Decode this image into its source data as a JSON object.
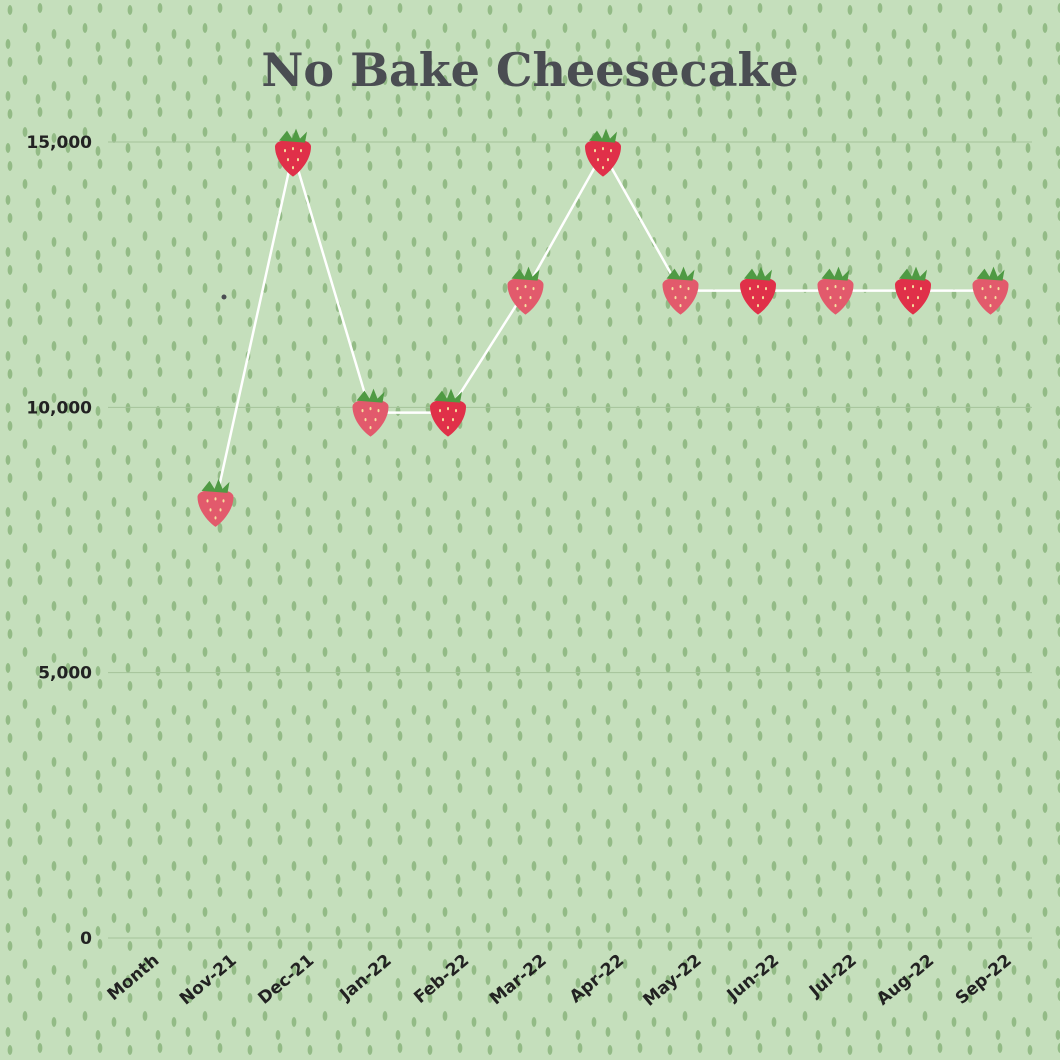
{
  "chart_data": {
    "type": "line",
    "title": "No Bake Cheesecake",
    "xlabel": "",
    "ylabel": "",
    "categories": [
      "Month",
      "Nov-21",
      "Dec-21",
      "Jan-22",
      "Feb-22",
      "Mar-22",
      "Apr-22",
      "May-22",
      "Jun-22",
      "Jul-22",
      "Aug-22",
      "Sep-22"
    ],
    "series": [
      {
        "values": [
          null,
          8200,
          14800,
          9900,
          9900,
          12200,
          14800,
          12200,
          12200,
          12200,
          12200,
          12200
        ]
      }
    ],
    "ylim": [
      0,
      15000
    ],
    "yticks": [
      0,
      5000,
      10000,
      15000
    ],
    "ytick_labels": [
      "0",
      "5,000",
      "10,000",
      "15,000"
    ],
    "grid": true,
    "legend": "none",
    "marker": "strawberry-icon",
    "colors": {
      "background": "#c5dfbc",
      "seed": "#93bb86",
      "gridline": "#a5c39a",
      "line": "#ffffff",
      "title": "#4a4d52",
      "tick_label": "#222222",
      "strawberry": "#e03049",
      "strawberry_light": "#e25a6c",
      "leaf": "#4f9a43"
    }
  }
}
